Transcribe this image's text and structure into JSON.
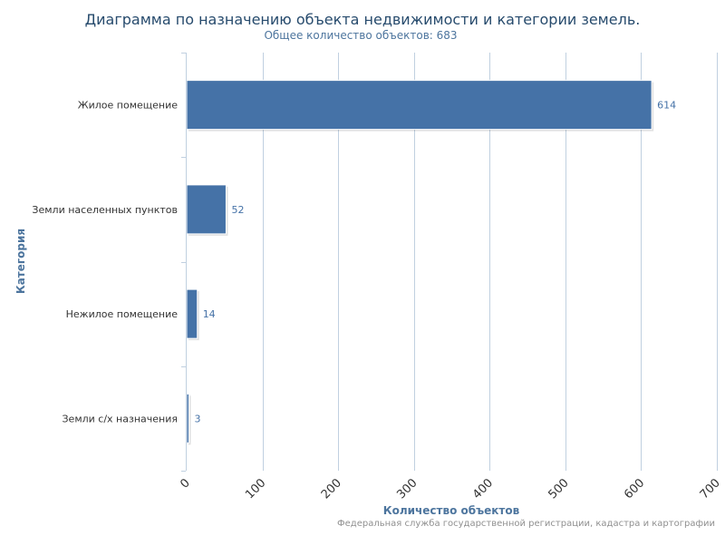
{
  "title": "Диаграмма по назначению объекта недвижимости и категории земель.",
  "subtitle": "Общее количество объектов: 683",
  "credits": "Федеральная служба государственной регистрации, кадастра и картографии",
  "colors": {
    "bar": "#4572a7",
    "grid": "#c0d0e0",
    "axis_line": "#c0d0e0",
    "title": "#274b6d",
    "axis_title": "#4d759e"
  },
  "chart_data": {
    "type": "bar",
    "orientation": "horizontal",
    "title": "Диаграмма по назначению объекта недвижимости и категории земель.",
    "subtitle": "Общее количество объектов: 683",
    "categories": [
      "Жилое помещение",
      "Земли населенных пунктов",
      "Нежилое помещение",
      "Земли с/х назначения"
    ],
    "values": [
      614,
      52,
      14,
      3
    ],
    "data_labels": [
      "614",
      "52",
      "14",
      "3"
    ],
    "xlabel": "Количество объектов",
    "ylabel": "Категория",
    "xlim": [
      0,
      700
    ],
    "xticks": [
      0,
      100,
      200,
      300,
      400,
      500,
      600,
      700
    ],
    "xtick_labels": [
      "0",
      "100",
      "200",
      "300",
      "400",
      "500",
      "600",
      "700"
    ],
    "grid": true
  }
}
